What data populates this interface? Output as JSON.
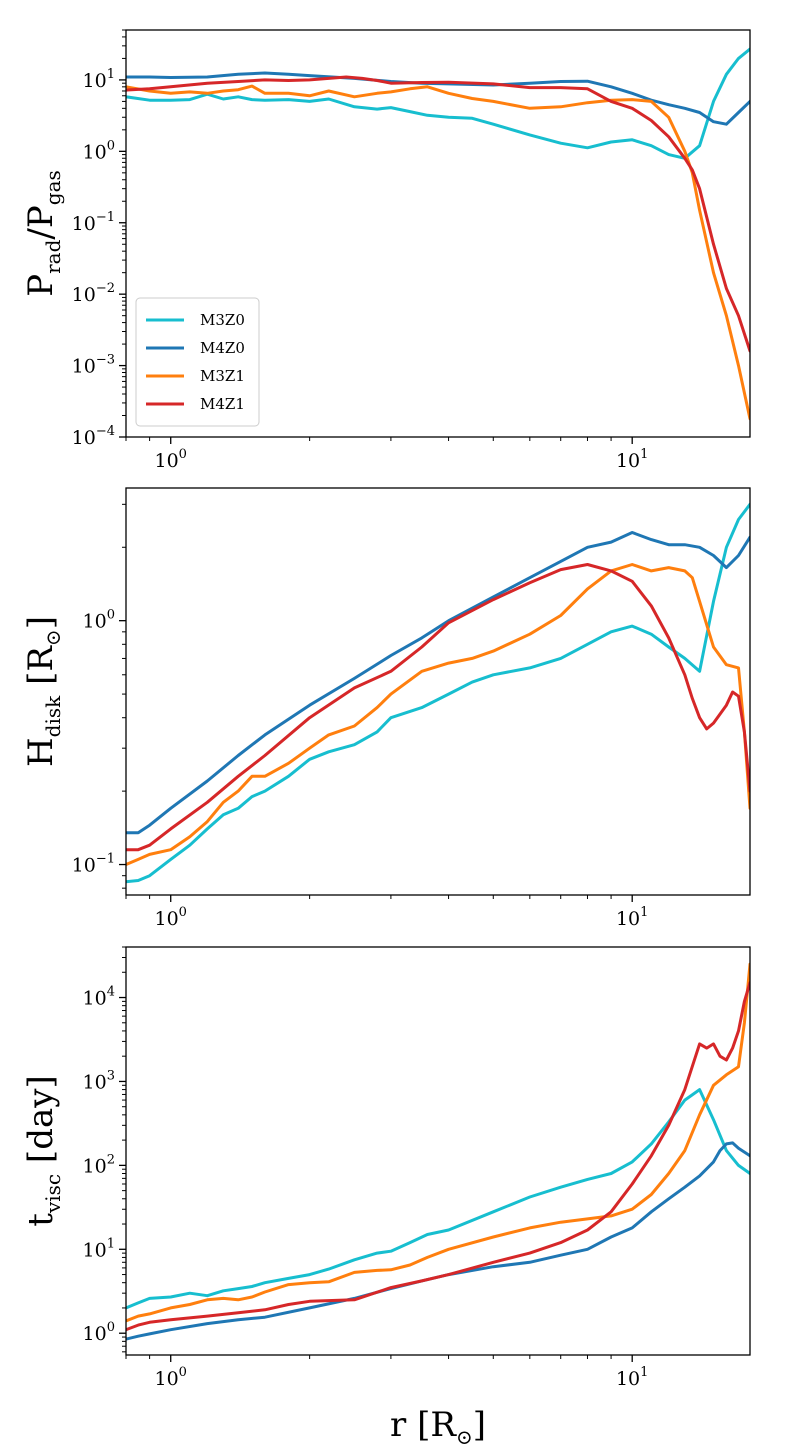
{
  "chart_data": [
    {
      "type": "line",
      "ylabel": "P_rad/P_gas",
      "xscale": "log",
      "yscale": "log",
      "xlim": [
        0.8,
        18.0
      ],
      "ylim": [
        0.0001,
        50
      ],
      "x_ticks": [
        {
          "base": "10",
          "exp": "0"
        },
        {
          "base": "10",
          "exp": "1"
        }
      ],
      "y_ticks": [
        {
          "base": "10",
          "exp": "−4",
          "value": 0.0001
        },
        {
          "base": "10",
          "exp": "−3",
          "value": 0.001
        },
        {
          "base": "10",
          "exp": "−2",
          "value": 0.01
        },
        {
          "base": "10",
          "exp": "−1",
          "value": 0.1
        },
        {
          "base": "10",
          "exp": "0",
          "value": 1
        },
        {
          "base": "10",
          "exp": "1",
          "value": 10
        }
      ],
      "legend": {
        "position": "lower-left",
        "entries": [
          {
            "name": "M3Z0",
            "color": "#17becf"
          },
          {
            "name": "M4Z0",
            "color": "#1f77b4"
          },
          {
            "name": "M3Z1",
            "color": "#ff7f0e"
          },
          {
            "name": "M4Z1",
            "color": "#d62728"
          }
        ]
      },
      "series": [
        {
          "name": "M3Z0",
          "color": "#17becf",
          "x": [
            0.8,
            0.9,
            1.0,
            1.1,
            1.2,
            1.3,
            1.4,
            1.5,
            1.6,
            1.8,
            2.0,
            2.2,
            2.5,
            2.8,
            3.0,
            3.3,
            3.6,
            4.0,
            4.5,
            5.0,
            6.0,
            7.0,
            8.0,
            9.0,
            10.0,
            11.0,
            12.0,
            13.0,
            14.0,
            15.0,
            16.0,
            17.0,
            18.0
          ],
          "y": [
            5.8,
            5.2,
            5.2,
            5.3,
            6.3,
            5.4,
            5.8,
            5.3,
            5.2,
            5.3,
            5.0,
            5.4,
            4.2,
            3.9,
            4.1,
            3.6,
            3.2,
            3.0,
            2.9,
            2.4,
            1.7,
            1.3,
            1.12,
            1.35,
            1.45,
            1.2,
            0.9,
            0.8,
            1.2,
            5.0,
            12.0,
            20.0,
            27.0
          ]
        },
        {
          "name": "M4Z0",
          "color": "#1f77b4",
          "x": [
            0.8,
            0.9,
            1.0,
            1.2,
            1.4,
            1.6,
            1.8,
            2.0,
            2.5,
            3.0,
            3.5,
            4.0,
            5.0,
            6.0,
            7.0,
            8.0,
            9.0,
            10.0,
            11.0,
            12.0,
            13.0,
            14.0,
            15.0,
            16.0,
            17.0,
            18.0
          ],
          "y": [
            11.0,
            11.0,
            10.8,
            11.0,
            12.0,
            12.5,
            12.0,
            11.5,
            10.5,
            9.5,
            9.0,
            8.8,
            8.5,
            9.0,
            9.5,
            9.6,
            8.0,
            6.5,
            5.2,
            4.5,
            4.0,
            3.5,
            2.6,
            2.4,
            3.5,
            5.0
          ]
        },
        {
          "name": "M3Z1",
          "color": "#ff7f0e",
          "x": [
            0.8,
            0.9,
            1.0,
            1.1,
            1.2,
            1.3,
            1.4,
            1.5,
            1.6,
            1.8,
            2.0,
            2.2,
            2.5,
            2.8,
            3.0,
            3.3,
            3.6,
            4.0,
            4.5,
            5.0,
            6.0,
            7.0,
            8.0,
            9.0,
            10.0,
            11.0,
            12.0,
            13.0,
            13.5,
            14.0,
            15.0,
            16.0,
            17.0,
            18.0
          ],
          "y": [
            8.0,
            7.0,
            6.5,
            6.8,
            6.5,
            7.0,
            7.3,
            8.2,
            6.5,
            6.5,
            6.0,
            7.0,
            5.8,
            6.5,
            6.8,
            7.5,
            8.0,
            6.5,
            5.5,
            5.0,
            4.0,
            4.2,
            4.8,
            5.2,
            5.3,
            5.0,
            3.0,
            1.0,
            0.5,
            0.15,
            0.02,
            0.005,
            0.001,
            0.00018
          ]
        },
        {
          "name": "M4Z1",
          "color": "#d62728",
          "x": [
            0.8,
            0.9,
            1.0,
            1.2,
            1.4,
            1.6,
            1.8,
            2.0,
            2.2,
            2.4,
            2.6,
            2.8,
            3.0,
            3.5,
            4.0,
            5.0,
            6.0,
            7.0,
            8.0,
            9.0,
            10.0,
            11.0,
            12.0,
            13.0,
            13.5,
            14.0,
            15.0,
            16.0,
            17.0,
            18.0
          ],
          "y": [
            7.2,
            7.5,
            8.0,
            9.0,
            9.5,
            10.0,
            9.8,
            10.0,
            10.5,
            11.0,
            10.5,
            9.8,
            9.0,
            9.2,
            9.3,
            8.8,
            7.8,
            7.8,
            7.5,
            5.0,
            4.0,
            2.7,
            1.6,
            0.8,
            0.55,
            0.3,
            0.05,
            0.012,
            0.005,
            0.0016
          ]
        }
      ]
    },
    {
      "type": "line",
      "ylabel": "H_disk [R_⊙]",
      "xscale": "log",
      "yscale": "log",
      "xlim": [
        0.8,
        18.0
      ],
      "ylim": [
        0.075,
        3.5
      ],
      "x_ticks": [
        {
          "base": "10",
          "exp": "0"
        },
        {
          "base": "10",
          "exp": "1"
        }
      ],
      "y_ticks": [
        {
          "base": "10",
          "exp": "−1",
          "value": 0.1
        },
        {
          "base": "10",
          "exp": "0",
          "value": 1
        }
      ],
      "series": [
        {
          "name": "M3Z0",
          "color": "#17becf",
          "x": [
            0.8,
            0.85,
            0.9,
            1.0,
            1.1,
            1.2,
            1.3,
            1.4,
            1.5,
            1.6,
            1.8,
            2.0,
            2.2,
            2.5,
            2.8,
            3.0,
            3.5,
            4.0,
            4.5,
            5.0,
            6.0,
            7.0,
            8.0,
            9.0,
            10.0,
            11.0,
            12.0,
            13.0,
            14.0,
            15.0,
            16.0,
            17.0,
            18.0
          ],
          "y": [
            0.085,
            0.086,
            0.09,
            0.105,
            0.12,
            0.14,
            0.16,
            0.17,
            0.19,
            0.2,
            0.23,
            0.27,
            0.29,
            0.31,
            0.35,
            0.4,
            0.44,
            0.5,
            0.56,
            0.6,
            0.64,
            0.7,
            0.8,
            0.9,
            0.95,
            0.88,
            0.78,
            0.7,
            0.62,
            1.2,
            2.0,
            2.6,
            3.0
          ]
        },
        {
          "name": "M4Z0",
          "color": "#1f77b4",
          "x": [
            0.8,
            0.85,
            0.9,
            1.0,
            1.2,
            1.4,
            1.6,
            2.0,
            2.5,
            3.0,
            3.5,
            4.0,
            5.0,
            6.0,
            7.0,
            8.0,
            9.0,
            10.0,
            11.0,
            12.0,
            13.0,
            14.0,
            15.0,
            16.0,
            17.0,
            18.0
          ],
          "y": [
            0.135,
            0.135,
            0.145,
            0.17,
            0.22,
            0.28,
            0.34,
            0.45,
            0.58,
            0.72,
            0.85,
            1.0,
            1.25,
            1.5,
            1.75,
            2.0,
            2.1,
            2.3,
            2.15,
            2.05,
            2.05,
            2.0,
            1.85,
            1.65,
            1.85,
            2.2
          ]
        },
        {
          "name": "M3Z1",
          "color": "#ff7f0e",
          "x": [
            0.8,
            0.85,
            0.9,
            1.0,
            1.1,
            1.2,
            1.3,
            1.4,
            1.5,
            1.6,
            1.8,
            2.0,
            2.2,
            2.5,
            2.8,
            3.0,
            3.5,
            4.0,
            4.5,
            5.0,
            6.0,
            7.0,
            8.0,
            9.0,
            10.0,
            11.0,
            12.0,
            13.0,
            13.5,
            14.0,
            15.0,
            16.0,
            17.0,
            17.5,
            18.0
          ],
          "y": [
            0.1,
            0.105,
            0.11,
            0.115,
            0.13,
            0.15,
            0.18,
            0.2,
            0.23,
            0.23,
            0.26,
            0.3,
            0.34,
            0.37,
            0.44,
            0.5,
            0.62,
            0.67,
            0.7,
            0.75,
            0.88,
            1.05,
            1.35,
            1.6,
            1.7,
            1.6,
            1.65,
            1.6,
            1.5,
            1.2,
            0.78,
            0.66,
            0.64,
            0.35,
            0.17
          ]
        },
        {
          "name": "M4Z1",
          "color": "#d62728",
          "x": [
            0.8,
            0.85,
            0.9,
            1.0,
            1.2,
            1.4,
            1.6,
            2.0,
            2.5,
            3.0,
            3.5,
            4.0,
            5.0,
            6.0,
            7.0,
            8.0,
            9.0,
            10.0,
            11.0,
            12.0,
            13.0,
            13.5,
            14.0,
            14.5,
            15.0,
            16.0,
            16.5,
            17.0,
            17.5,
            18.0
          ],
          "y": [
            0.115,
            0.115,
            0.12,
            0.14,
            0.18,
            0.23,
            0.28,
            0.4,
            0.53,
            0.62,
            0.78,
            0.98,
            1.22,
            1.43,
            1.62,
            1.7,
            1.6,
            1.45,
            1.15,
            0.85,
            0.6,
            0.48,
            0.4,
            0.36,
            0.38,
            0.45,
            0.51,
            0.49,
            0.35,
            0.2
          ]
        }
      ]
    },
    {
      "type": "line",
      "ylabel": "t_visc [day]",
      "xlabel": "r [R_⊙]",
      "xscale": "log",
      "yscale": "log",
      "xlim": [
        0.8,
        18.0
      ],
      "ylim": [
        0.55,
        40000
      ],
      "x_ticks": [
        {
          "base": "10",
          "exp": "0"
        },
        {
          "base": "10",
          "exp": "1"
        }
      ],
      "y_ticks": [
        {
          "base": "10",
          "exp": "0",
          "value": 1
        },
        {
          "base": "10",
          "exp": "1",
          "value": 10
        },
        {
          "base": "10",
          "exp": "2",
          "value": 100
        },
        {
          "base": "10",
          "exp": "3",
          "value": 1000
        },
        {
          "base": "10",
          "exp": "4",
          "value": 10000
        }
      ],
      "series": [
        {
          "name": "M3Z0",
          "color": "#17becf",
          "x": [
            0.8,
            0.85,
            0.9,
            1.0,
            1.1,
            1.2,
            1.3,
            1.4,
            1.5,
            1.6,
            1.8,
            2.0,
            2.2,
            2.5,
            2.8,
            3.0,
            3.3,
            3.6,
            4.0,
            5.0,
            6.0,
            7.0,
            8.0,
            9.0,
            10.0,
            11.0,
            12.0,
            13.0,
            14.0,
            15.0,
            16.0,
            17.0,
            18.0
          ],
          "y": [
            2.0,
            2.3,
            2.6,
            2.7,
            3.0,
            2.8,
            3.2,
            3.4,
            3.6,
            4.0,
            4.5,
            5.0,
            5.8,
            7.5,
            9.0,
            9.5,
            12.0,
            15.0,
            17.0,
            28.0,
            42.0,
            55.0,
            68.0,
            80.0,
            110.0,
            180.0,
            330.0,
            600.0,
            800.0,
            350.0,
            150.0,
            100.0,
            80.0
          ]
        },
        {
          "name": "M4Z0",
          "color": "#1f77b4",
          "x": [
            0.8,
            0.85,
            0.9,
            1.0,
            1.2,
            1.4,
            1.6,
            2.0,
            2.5,
            3.0,
            3.5,
            4.0,
            5.0,
            6.0,
            7.0,
            8.0,
            9.0,
            10.0,
            11.0,
            12.0,
            13.0,
            14.0,
            15.0,
            15.5,
            16.0,
            16.5,
            17.0,
            18.0
          ],
          "y": [
            0.85,
            0.92,
            0.98,
            1.1,
            1.3,
            1.45,
            1.55,
            2.0,
            2.6,
            3.4,
            4.2,
            5.0,
            6.2,
            7.0,
            8.5,
            10.0,
            14.0,
            18.0,
            28.0,
            40.0,
            55.0,
            75.0,
            110.0,
            150.0,
            180.0,
            185.0,
            160.0,
            130.0
          ]
        },
        {
          "name": "M3Z1",
          "color": "#ff7f0e",
          "x": [
            0.8,
            0.85,
            0.9,
            1.0,
            1.1,
            1.2,
            1.3,
            1.4,
            1.5,
            1.6,
            1.8,
            2.0,
            2.2,
            2.5,
            2.8,
            3.0,
            3.3,
            3.6,
            4.0,
            5.0,
            6.0,
            7.0,
            8.0,
            9.0,
            10.0,
            11.0,
            12.0,
            13.0,
            14.0,
            15.0,
            16.0,
            17.0,
            17.5,
            18.0
          ],
          "y": [
            1.4,
            1.6,
            1.7,
            2.0,
            2.2,
            2.5,
            2.6,
            2.5,
            2.7,
            3.1,
            3.8,
            4.0,
            4.1,
            5.3,
            5.6,
            5.7,
            6.5,
            8.0,
            10.0,
            14.0,
            18.0,
            21.0,
            23.0,
            25.0,
            30.0,
            45.0,
            80.0,
            150.0,
            400.0,
            900.0,
            1200.0,
            1500.0,
            5000.0,
            25000.0
          ]
        },
        {
          "name": "M4Z1",
          "color": "#d62728",
          "x": [
            0.8,
            0.85,
            0.9,
            1.0,
            1.2,
            1.4,
            1.6,
            1.8,
            2.0,
            2.5,
            3.0,
            3.5,
            4.0,
            5.0,
            6.0,
            7.0,
            8.0,
            9.0,
            10.0,
            11.0,
            12.0,
            13.0,
            14.0,
            14.5,
            15.0,
            15.5,
            16.0,
            16.5,
            17.0,
            17.5,
            18.0
          ],
          "y": [
            1.1,
            1.25,
            1.35,
            1.45,
            1.6,
            1.75,
            1.9,
            2.2,
            2.4,
            2.5,
            3.5,
            4.2,
            5.0,
            7.0,
            9.0,
            12.0,
            17.0,
            28.0,
            60.0,
            130.0,
            300.0,
            800.0,
            2800.0,
            2500.0,
            2800.0,
            2000.0,
            1800.0,
            2500.0,
            4000.0,
            9000.0,
            15000.0
          ]
        }
      ]
    }
  ]
}
